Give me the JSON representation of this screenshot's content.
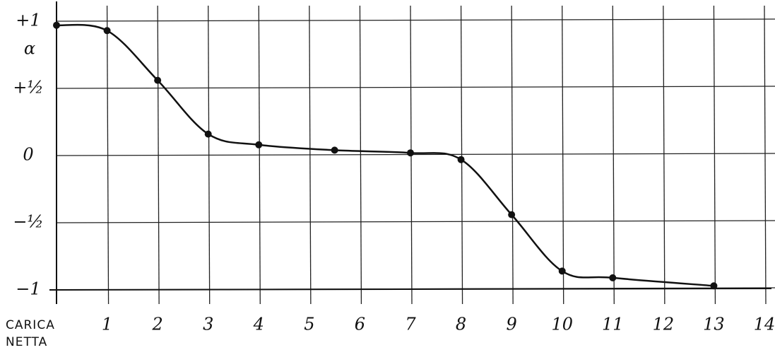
{
  "chart_data": {
    "type": "line",
    "y_label": "α",
    "x_label": "CARICA NETTA",
    "x": [
      0,
      1,
      2,
      3,
      4,
      5.5,
      7,
      8,
      9,
      10,
      11,
      13
    ],
    "series": [
      {
        "color": "#111111",
        "values": [
          0.97,
          0.93,
          0.56,
          0.16,
          0.08,
          0.04,
          0.02,
          -0.03,
          -0.44,
          -0.86,
          -0.91,
          -0.97
        ]
      }
    ],
    "xlim": [
      0,
      14
    ],
    "xticks": [
      1,
      2,
      3,
      4,
      5,
      6,
      7,
      8,
      9,
      10,
      11,
      12,
      13,
      14
    ],
    "ylim": [
      -1,
      1
    ],
    "yticks": [
      {
        "value": 1,
        "label": "+1"
      },
      {
        "value": 0.5,
        "label": "+½"
      },
      0,
      {
        "value": -0.5,
        "label": "−½"
      },
      {
        "value": -1,
        "label": "−1"
      }
    ],
    "grid": true
  }
}
